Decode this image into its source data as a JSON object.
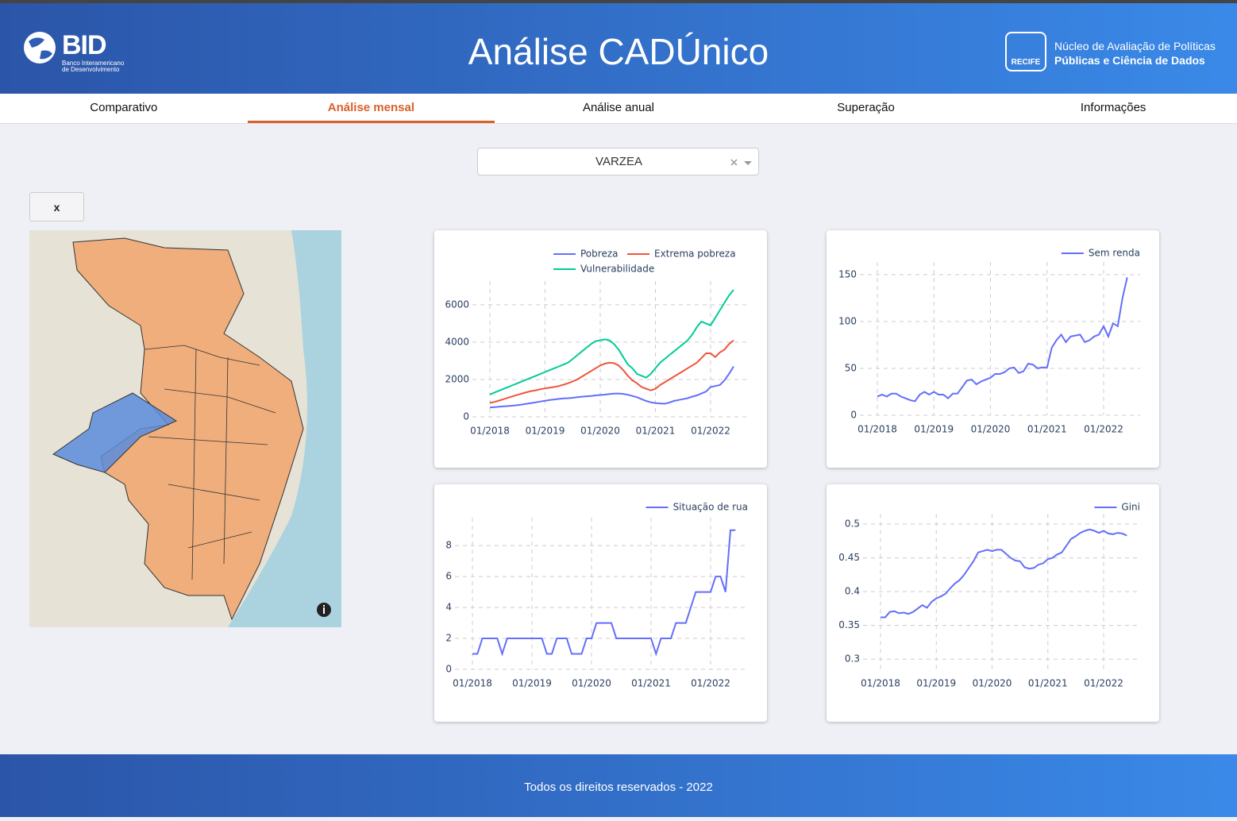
{
  "header": {
    "logo_left": "BID",
    "logo_left_sub": [
      "Banco Interamericano",
      "de Desenvolvimento"
    ],
    "title": "Análise CADÚnico",
    "logo_right_badge": "RECIFE",
    "logo_right_lines": [
      "Núcleo de Avaliação de Políticas",
      "Públicas e Ciência de Dados"
    ]
  },
  "tabs": {
    "items": [
      "Comparativo",
      "Análise mensal",
      "Análise anual",
      "Superação",
      "Informações"
    ],
    "active": 1
  },
  "dropdown": {
    "value": "VARZEA"
  },
  "close_button": "x",
  "chart_data": [
    {
      "type": "line",
      "legend": "top-right",
      "grid": true,
      "x": [
        "01/2018",
        "02/2018",
        "03/2018",
        "04/2018",
        "05/2018",
        "06/2018",
        "07/2018",
        "08/2018",
        "09/2018",
        "10/2018",
        "11/2018",
        "12/2018",
        "01/2019",
        "02/2019",
        "03/2019",
        "04/2019",
        "05/2019",
        "06/2019",
        "07/2019",
        "08/2019",
        "09/2019",
        "10/2019",
        "11/2019",
        "12/2019",
        "01/2020",
        "02/2020",
        "03/2020",
        "04/2020",
        "05/2020",
        "06/2020",
        "07/2020",
        "08/2020",
        "09/2020",
        "10/2020",
        "11/2020",
        "12/2020",
        "01/2021",
        "02/2021",
        "03/2021",
        "04/2021",
        "05/2021",
        "06/2021",
        "07/2021",
        "08/2021",
        "09/2021",
        "10/2021",
        "11/2021",
        "12/2021",
        "01/2022",
        "02/2022",
        "03/2022",
        "04/2022",
        "05/2022",
        "06/2022"
      ],
      "xticks": [
        "01/2018",
        "01/2019",
        "01/2020",
        "01/2021",
        "01/2022"
      ],
      "ylim": [
        0,
        7100
      ],
      "yticks": [
        0,
        2000,
        4000,
        6000
      ],
      "series": [
        {
          "name": "Pobreza",
          "color": "#636efa",
          "values": [
            500,
            520,
            540,
            560,
            580,
            600,
            630,
            660,
            700,
            740,
            780,
            820,
            860,
            900,
            930,
            960,
            990,
            1000,
            1020,
            1050,
            1080,
            1100,
            1120,
            1150,
            1170,
            1190,
            1220,
            1240,
            1250,
            1230,
            1180,
            1120,
            1050,
            950,
            850,
            780,
            740,
            720,
            700,
            760,
            850,
            900,
            950,
            1000,
            1080,
            1150,
            1250,
            1350,
            1600,
            1650,
            1700,
            1950,
            2300,
            2700
          ]
        },
        {
          "name": "Extrema pobreza",
          "color": "#ef553b",
          "values": [
            750,
            800,
            870,
            950,
            1030,
            1100,
            1180,
            1250,
            1320,
            1380,
            1420,
            1480,
            1520,
            1560,
            1600,
            1650,
            1720,
            1800,
            1900,
            2000,
            2150,
            2300,
            2450,
            2600,
            2750,
            2850,
            2900,
            2880,
            2750,
            2500,
            2200,
            1950,
            1800,
            1600,
            1500,
            1420,
            1500,
            1700,
            1850,
            2000,
            2150,
            2300,
            2450,
            2600,
            2750,
            2900,
            3150,
            3400,
            3400,
            3200,
            3450,
            3600,
            3900,
            4100
          ]
        },
        {
          "name": "Vulnerabilidade",
          "color": "#00cc96",
          "values": [
            1200,
            1300,
            1400,
            1500,
            1600,
            1700,
            1800,
            1900,
            2000,
            2100,
            2200,
            2300,
            2400,
            2500,
            2600,
            2700,
            2800,
            2900,
            3100,
            3300,
            3500,
            3700,
            3900,
            4050,
            4100,
            4150,
            4100,
            3900,
            3600,
            3200,
            2800,
            2600,
            2300,
            2200,
            2100,
            2300,
            2600,
            2900,
            3100,
            3300,
            3500,
            3700,
            3900,
            4100,
            4400,
            4800,
            5100,
            5000,
            4900,
            5300,
            5700,
            6100,
            6500,
            6800
          ]
        }
      ]
    },
    {
      "type": "line",
      "legend": "top-right",
      "grid": true,
      "x": [
        "01/2018",
        "02/2018",
        "03/2018",
        "04/2018",
        "05/2018",
        "06/2018",
        "07/2018",
        "08/2018",
        "09/2018",
        "10/2018",
        "11/2018",
        "12/2018",
        "01/2019",
        "02/2019",
        "03/2019",
        "04/2019",
        "05/2019",
        "06/2019",
        "07/2019",
        "08/2019",
        "09/2019",
        "10/2019",
        "11/2019",
        "12/2019",
        "01/2020",
        "02/2020",
        "03/2020",
        "04/2020",
        "05/2020",
        "06/2020",
        "07/2020",
        "08/2020",
        "09/2020",
        "10/2020",
        "11/2020",
        "12/2020",
        "01/2021",
        "02/2021",
        "03/2021",
        "04/2021",
        "05/2021",
        "06/2021",
        "07/2021",
        "08/2021",
        "09/2021",
        "10/2021",
        "11/2021",
        "12/2021",
        "01/2022",
        "02/2022",
        "03/2022",
        "04/2022",
        "05/2022",
        "06/2022"
      ],
      "xticks": [
        "01/2018",
        "01/2019",
        "01/2020",
        "01/2021",
        "01/2022"
      ],
      "ylim": [
        0,
        160
      ],
      "yticks": [
        0,
        50,
        100,
        150
      ],
      "series": [
        {
          "name": "Sem renda",
          "color": "#636efa",
          "values": [
            20,
            22,
            20,
            23,
            23,
            20,
            18,
            16,
            15,
            22,
            25,
            22,
            25,
            22,
            22,
            18,
            23,
            23,
            30,
            37,
            38,
            33,
            36,
            38,
            40,
            44,
            44,
            46,
            50,
            51,
            45,
            47,
            55,
            54,
            50,
            51,
            51,
            72,
            80,
            86,
            78,
            84,
            85,
            86,
            78,
            80,
            84,
            86,
            95,
            84,
            98,
            95,
            125,
            147
          ]
        }
      ]
    },
    {
      "type": "line",
      "legend": "top-right",
      "grid": true,
      "x": [
        "01/2018",
        "02/2018",
        "03/2018",
        "04/2018",
        "05/2018",
        "06/2018",
        "07/2018",
        "08/2018",
        "09/2018",
        "10/2018",
        "11/2018",
        "12/2018",
        "01/2019",
        "02/2019",
        "03/2019",
        "04/2019",
        "05/2019",
        "06/2019",
        "07/2019",
        "08/2019",
        "09/2019",
        "10/2019",
        "11/2019",
        "12/2019",
        "01/2020",
        "02/2020",
        "03/2020",
        "04/2020",
        "05/2020",
        "06/2020",
        "07/2020",
        "08/2020",
        "09/2020",
        "10/2020",
        "11/2020",
        "12/2020",
        "01/2021",
        "02/2021",
        "03/2021",
        "04/2021",
        "05/2021",
        "06/2021",
        "07/2021",
        "08/2021",
        "09/2021",
        "10/2021",
        "11/2021",
        "12/2021",
        "01/2022",
        "02/2022",
        "03/2022",
        "04/2022",
        "05/2022",
        "06/2022"
      ],
      "xticks": [
        "01/2018",
        "01/2019",
        "01/2020",
        "01/2021",
        "01/2022"
      ],
      "ylim": [
        0,
        9.6
      ],
      "yticks": [
        0,
        2,
        4,
        6,
        8
      ],
      "series": [
        {
          "name": "Situação de rua",
          "color": "#636efa",
          "values": [
            1,
            1,
            2,
            2,
            2,
            2,
            1,
            2,
            2,
            2,
            2,
            2,
            2,
            2,
            2,
            1,
            1,
            2,
            2,
            2,
            1,
            1,
            1,
            2,
            2,
            3,
            3,
            3,
            3,
            2,
            2,
            2,
            2,
            2,
            2,
            2,
            2,
            1,
            2,
            2,
            2,
            3,
            3,
            3,
            4,
            5,
            5,
            5,
            5,
            6,
            6,
            5,
            9,
            9
          ]
        }
      ]
    },
    {
      "type": "line",
      "legend": "top-right",
      "grid": true,
      "x": [
        "01/2018",
        "02/2018",
        "03/2018",
        "04/2018",
        "05/2018",
        "06/2018",
        "07/2018",
        "08/2018",
        "09/2018",
        "10/2018",
        "11/2018",
        "12/2018",
        "01/2019",
        "02/2019",
        "03/2019",
        "04/2019",
        "05/2019",
        "06/2019",
        "07/2019",
        "08/2019",
        "09/2019",
        "10/2019",
        "11/2019",
        "12/2019",
        "01/2020",
        "02/2020",
        "03/2020",
        "04/2020",
        "05/2020",
        "06/2020",
        "07/2020",
        "08/2020",
        "09/2020",
        "10/2020",
        "11/2020",
        "12/2020",
        "01/2021",
        "02/2021",
        "03/2021",
        "04/2021",
        "05/2021",
        "06/2021",
        "07/2021",
        "08/2021",
        "09/2021",
        "10/2021",
        "11/2021",
        "12/2021",
        "01/2022",
        "02/2022",
        "03/2022",
        "04/2022",
        "05/2022",
        "06/2022"
      ],
      "xticks": [
        "01/2018",
        "01/2019",
        "01/2020",
        "01/2021",
        "01/2022"
      ],
      "ylim": [
        0.285,
        0.51
      ],
      "yticks": [
        0.3,
        0.35,
        0.4,
        0.45,
        0.5
      ],
      "series": [
        {
          "name": "Gini",
          "color": "#636efa",
          "values": [
            0.362,
            0.362,
            0.37,
            0.371,
            0.368,
            0.369,
            0.367,
            0.37,
            0.375,
            0.38,
            0.376,
            0.385,
            0.39,
            0.393,
            0.397,
            0.405,
            0.412,
            0.417,
            0.425,
            0.435,
            0.445,
            0.458,
            0.46,
            0.462,
            0.46,
            0.462,
            0.462,
            0.456,
            0.45,
            0.446,
            0.445,
            0.436,
            0.434,
            0.435,
            0.44,
            0.442,
            0.448,
            0.45,
            0.455,
            0.458,
            0.468,
            0.478,
            0.482,
            0.487,
            0.49,
            0.492,
            0.49,
            0.487,
            0.49,
            0.486,
            0.485,
            0.487,
            0.486,
            0.483
          ]
        }
      ]
    }
  ],
  "footer": "Todos os direitos reservados - 2022"
}
